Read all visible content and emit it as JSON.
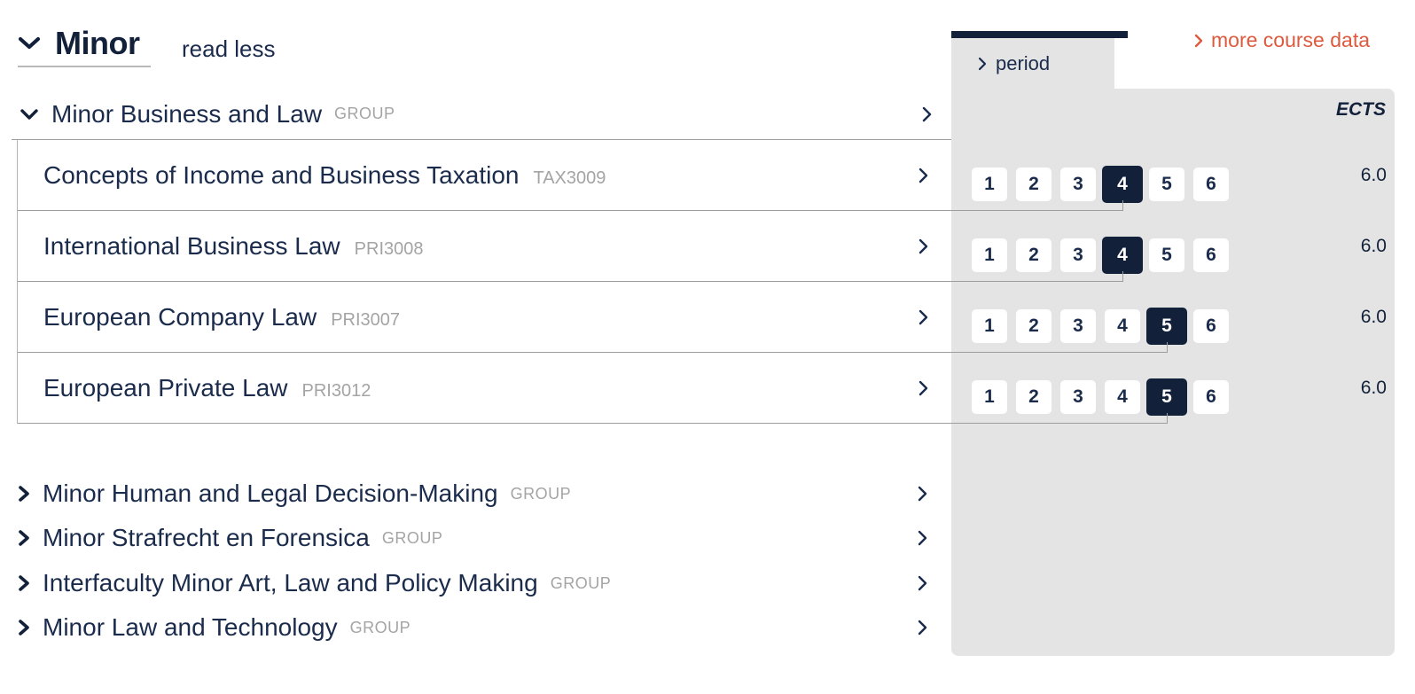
{
  "header": {
    "title": "Minor",
    "toggle_label": "read less",
    "more_link": "more course data"
  },
  "columns": {
    "period_label": "period",
    "ects_label": "ECTS"
  },
  "period_labels": [
    "1",
    "2",
    "3",
    "4",
    "5",
    "6"
  ],
  "group_open": {
    "title": "Minor Business and Law",
    "type_label": "GROUP",
    "courses": [
      {
        "title": "Concepts of Income and Business Taxation",
        "code": "TAX3009",
        "active_period": 4,
        "ects": "6.0"
      },
      {
        "title": "International Business Law",
        "code": "PRI3008",
        "active_period": 4,
        "ects": "6.0"
      },
      {
        "title": "European Company Law",
        "code": "PRI3007",
        "active_period": 5,
        "ects": "6.0"
      },
      {
        "title": "European Private Law",
        "code": "PRI3012",
        "active_period": 5,
        "ects": "6.0"
      }
    ]
  },
  "groups_collapsed": [
    {
      "title": "Minor Human and Legal Decision-Making",
      "type_label": "GROUP"
    },
    {
      "title": "Minor Strafrecht en Forensica",
      "type_label": "GROUP"
    },
    {
      "title": "Interfaculty Minor Art, Law and Policy Making",
      "type_label": "GROUP"
    },
    {
      "title": "Minor Law and Technology",
      "type_label": "GROUP"
    }
  ],
  "colors": {
    "navy_text": "#1a2b4c",
    "navy_dark": "#12203a",
    "panel_gray": "#e4e4e4",
    "divider_gray": "#9d9d9d",
    "muted_gray": "#a4a4a4",
    "accent_orange": "#dc5a3d",
    "active_period_bg": "#12203a",
    "active_period_text": "#ffffff"
  }
}
